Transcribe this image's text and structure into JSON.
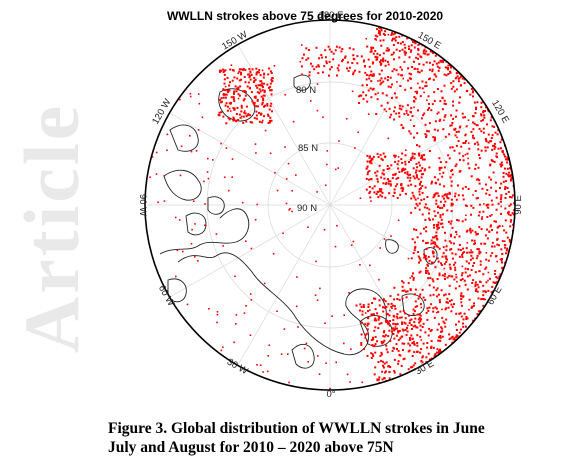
{
  "watermark": "Article",
  "map": {
    "title": "WWLLN strokes above 75 degrees for 2010-2020",
    "lat_labels": [
      "80 N",
      "85 N",
      "90 N"
    ],
    "lon_labels": [
      "0°",
      "30 E",
      "60 E",
      "90 E",
      "120 E",
      "150 E",
      "180 E",
      "150 W",
      "120 W",
      "90 W",
      "60 W",
      "30 W"
    ],
    "stroke_color": "#ff0000",
    "coast_color": "#222222"
  },
  "caption": {
    "line1": "Figure 3.  Global distribution of WWLLN strokes in June",
    "line2": "July and August for 2010 – 2020 above 75N"
  }
}
